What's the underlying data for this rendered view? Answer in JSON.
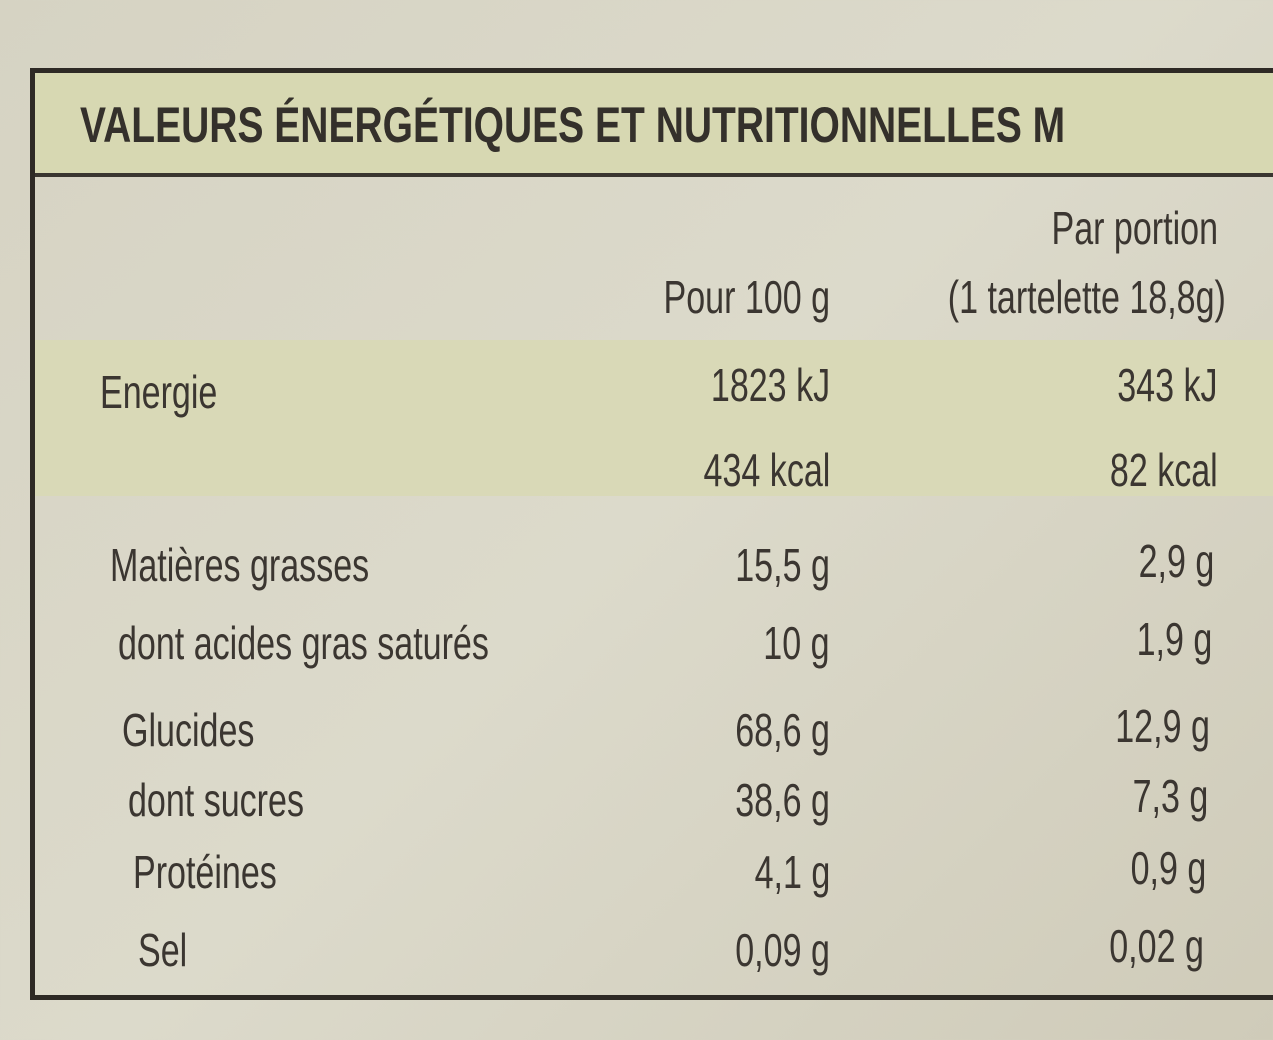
{
  "header": {
    "title": "VALEURS ÉNERGÉTIQUES ET NUTRITIONNELLES M"
  },
  "table": {
    "columns": [
      {
        "label": "Pour 100 g"
      },
      {
        "label": "Par portion",
        "sub": "(1 tartelette 18,8g)"
      }
    ],
    "energy": {
      "label": "Energie",
      "per100": [
        "1823 kJ",
        "434 kcal"
      ],
      "portion": [
        "343 kJ",
        "82 kcal"
      ]
    },
    "rows": [
      [
        "Matières grasses",
        "15,5 g",
        "2,9 g"
      ],
      [
        "dont acides gras saturés",
        "10 g",
        "1,9 g"
      ],
      [
        "Glucides",
        "68,6 g",
        "12,9 g"
      ],
      [
        "dont sucres",
        "38,6 g",
        "7,3 g"
      ],
      [
        "Protéines",
        "4,1 g",
        "0,9 g"
      ],
      [
        "Sel",
        "0,09 g",
        "0,02 g"
      ]
    ]
  }
}
